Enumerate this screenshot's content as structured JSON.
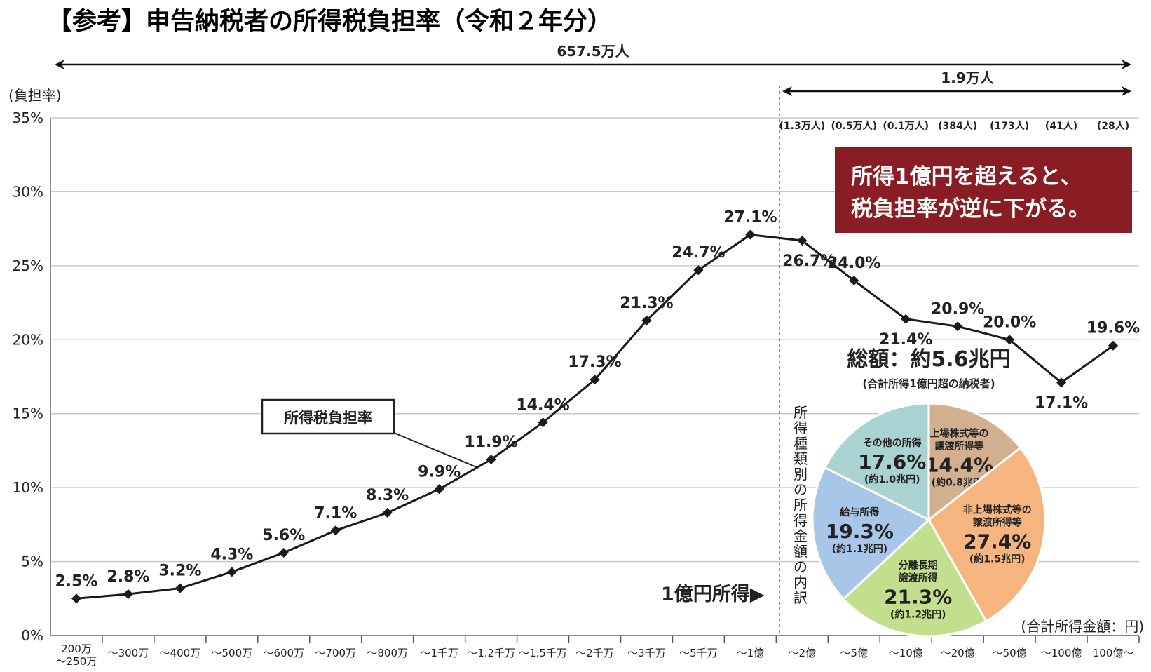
{
  "title": "【参考】申告納税者の所得税負担率（令和２年分）",
  "y_unit_label": "(負担率)",
  "x_unit_label": "(合計所得金額：円)",
  "total_count_label": "657.5万人",
  "over_100m_count_label": "1.9万人",
  "series_callout": "所得税負担率",
  "threshold_label": "1億円所得▶",
  "notice_lines": [
    "所得1億円を超えると、",
    "税負担率が逆に下がる。"
  ],
  "vertical_caption": "所得種類別の所得金額の内訳",
  "colors": {
    "line": "#1a1a1a",
    "grid": "#c8c8c8",
    "notice_bg": "#8a1c24",
    "notice_text": "#ffffff"
  },
  "chart_data": {
    "type": "line",
    "categories": [
      "200万\n～250万",
      "～300万",
      "～400万",
      "～500万",
      "～600万",
      "～700万",
      "～800万",
      "～1千万",
      "～1.2千万",
      "～1.5千万",
      "～2千万",
      "～3千万",
      "～5千万",
      "～1億",
      "～2億",
      "～5億",
      "～10億",
      "～20億",
      "～50億",
      "～100億",
      "100億～"
    ],
    "values": [
      2.5,
      2.8,
      3.2,
      4.3,
      5.6,
      7.1,
      8.3,
      9.9,
      11.9,
      14.4,
      17.3,
      21.3,
      24.7,
      27.1,
      26.7,
      24.0,
      21.4,
      20.9,
      20.0,
      17.1,
      19.6
    ],
    "value_labels": [
      "2.5%",
      "2.8%",
      "3.2%",
      "4.3%",
      "5.6%",
      "7.1%",
      "8.3%",
      "9.9%",
      "11.9%",
      "14.4%",
      "17.3%",
      "21.3%",
      "24.7%",
      "27.1%",
      "26.7%",
      "24.0%",
      "21.4%",
      "20.9%",
      "20.0%",
      "17.1%",
      "19.6%"
    ],
    "ylim": [
      0,
      35
    ],
    "y_ticks": [
      "0%",
      "5%",
      "10%",
      "15%",
      "20%",
      "25%",
      "30%",
      "35%"
    ],
    "grid": true,
    "group_counts": [
      "(1.3万人)",
      "(0.5万人)",
      "(0.1万人)",
      "(384人)",
      "(173人)",
      "(41人)",
      "(28人)"
    ]
  },
  "pie_data": {
    "title": "総額：約5.6兆円",
    "subtitle": "(合計所得1億円超の納税者)",
    "slices": [
      {
        "name_lines": [
          "上場株式等の",
          "譲渡所得等"
        ],
        "pct": 14.4,
        "pct_label": "14.4%",
        "amount": "(約0.8兆円)",
        "color": "#d2b08f"
      },
      {
        "name_lines": [
          "非上場株式等の",
          "譲渡所得等"
        ],
        "pct": 27.4,
        "pct_label": "27.4%",
        "amount": "(約1.5兆円)",
        "color": "#f6b47e"
      },
      {
        "name_lines": [
          "分離長期",
          "譲渡所得"
        ],
        "pct": 21.3,
        "pct_label": "21.3%",
        "amount": "(約1.2兆円)",
        "color": "#c2df8e"
      },
      {
        "name_lines": [
          "給与所得"
        ],
        "pct": 19.3,
        "pct_label": "19.3%",
        "amount": "(約1.1兆円)",
        "color": "#a8c6e8"
      },
      {
        "name_lines": [
          "その他の所得"
        ],
        "pct": 17.6,
        "pct_label": "17.6%",
        "amount": "(約1.0兆円)",
        "color": "#a9d3d2"
      }
    ]
  }
}
